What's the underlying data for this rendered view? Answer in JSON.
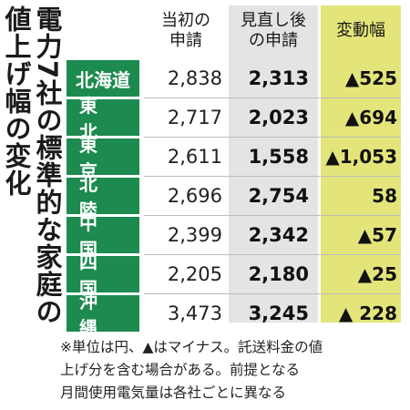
{
  "title": {
    "line1": "電力7社の標準的な家庭の",
    "line2": "値上げ幅の変化"
  },
  "columns": {
    "initial": "当初の\n申請",
    "revised": "見直し後\nの申請",
    "change": "変動幅"
  },
  "rows": [
    {
      "company": "北海道",
      "initial": "2,838",
      "revised": "2,313",
      "change": "▲525"
    },
    {
      "company": "東 北",
      "initial": "2,717",
      "revised": "2,023",
      "change": "▲694"
    },
    {
      "company": "東 京",
      "initial": "2,611",
      "revised": "1,558",
      "change": "▲1,053"
    },
    {
      "company": "北 陸",
      "initial": "2,696",
      "revised": "2,754",
      "change": "58"
    },
    {
      "company": "中 国",
      "initial": "2,399",
      "revised": "2,342",
      "change": "▲57"
    },
    {
      "company": "四 国",
      "initial": "2,205",
      "revised": "2,180",
      "change": "▲25"
    },
    {
      "company": "沖 縄",
      "initial": "3,473",
      "revised": "3,245",
      "change": "▲ 228"
    }
  ],
  "note": "※単位は円、▲はマイナス。託送料金の値\n上げ分を含む場合がある。前提となる\n月間使用電気量は各社ごとに異なる",
  "colors": {
    "company_bg": "#1d8a4f",
    "revised_bg": "#e4e4e4",
    "change_bg": "#e3e57a"
  }
}
